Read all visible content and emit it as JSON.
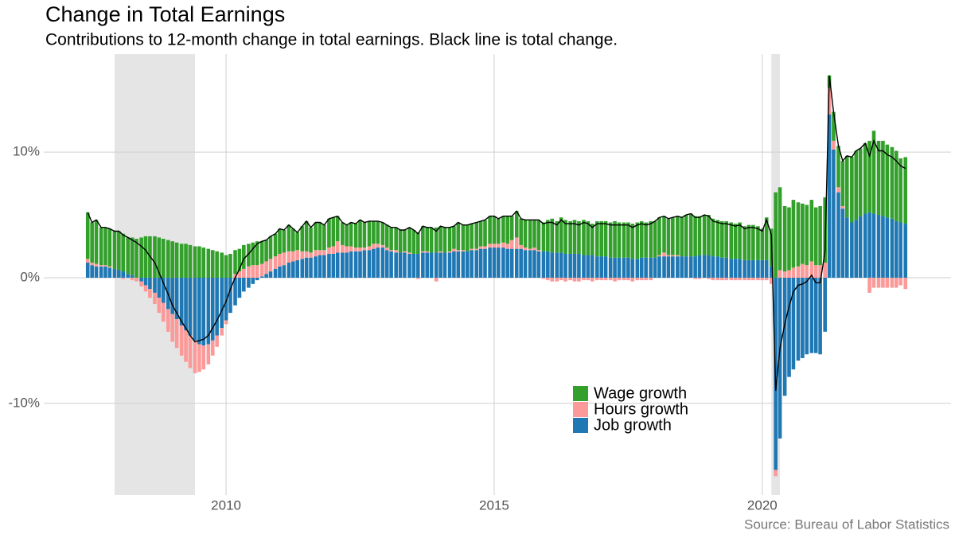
{
  "chart_data": {
    "type": "stacked-bar-line",
    "title": "Change in Total Earnings",
    "subtitle": "Contributions to 12-month change in total earnings. Black line is total change.",
    "source": "Source: Bureau of Labor Statistics",
    "xlim": [
      2006.6,
      2023.52
    ],
    "xticks": [
      2010,
      2015,
      2020
    ],
    "ylim": [
      -17.3,
      17.8
    ],
    "yticks": [
      {
        "value": -10,
        "label": "-10%"
      },
      {
        "value": 0,
        "label": "0%"
      },
      {
        "value": 10,
        "label": "10%"
      }
    ],
    "grid": true,
    "recession_color": "#e5e5e5",
    "recessions": [
      [
        2007.92,
        2009.42
      ],
      [
        2020.17,
        2020.33
      ]
    ],
    "x": [
      2007.42,
      2007.5,
      2007.58,
      2007.67,
      2007.75,
      2007.83,
      2007.92,
      2008,
      2008.08,
      2008.17,
      2008.25,
      2008.33,
      2008.42,
      2008.5,
      2008.58,
      2008.67,
      2008.75,
      2008.83,
      2008.92,
      2009,
      2009.08,
      2009.17,
      2009.25,
      2009.33,
      2009.42,
      2009.5,
      2009.58,
      2009.67,
      2009.75,
      2009.83,
      2009.92,
      2010,
      2010.08,
      2010.17,
      2010.25,
      2010.33,
      2010.42,
      2010.5,
      2010.58,
      2010.67,
      2010.75,
      2010.83,
      2010.92,
      2011,
      2011.08,
      2011.17,
      2011.25,
      2011.33,
      2011.42,
      2011.5,
      2011.58,
      2011.67,
      2011.75,
      2011.83,
      2011.92,
      2012,
      2012.08,
      2012.17,
      2012.25,
      2012.33,
      2012.42,
      2012.5,
      2012.58,
      2012.67,
      2012.75,
      2012.83,
      2012.92,
      2013,
      2013.08,
      2013.17,
      2013.25,
      2013.33,
      2013.42,
      2013.5,
      2013.58,
      2013.67,
      2013.75,
      2013.83,
      2013.92,
      2014,
      2014.08,
      2014.17,
      2014.25,
      2014.33,
      2014.42,
      2014.5,
      2014.58,
      2014.67,
      2014.75,
      2014.83,
      2014.92,
      2015,
      2015.08,
      2015.17,
      2015.25,
      2015.33,
      2015.42,
      2015.5,
      2015.58,
      2015.67,
      2015.75,
      2015.83,
      2015.92,
      2016,
      2016.08,
      2016.17,
      2016.25,
      2016.33,
      2016.42,
      2016.5,
      2016.58,
      2016.67,
      2016.75,
      2016.83,
      2016.92,
      2017,
      2017.08,
      2017.17,
      2017.25,
      2017.33,
      2017.42,
      2017.5,
      2017.58,
      2017.67,
      2017.75,
      2017.83,
      2017.92,
      2018,
      2018.08,
      2018.17,
      2018.25,
      2018.33,
      2018.42,
      2018.5,
      2018.58,
      2018.67,
      2018.75,
      2018.83,
      2018.92,
      2019,
      2019.08,
      2019.17,
      2019.25,
      2019.33,
      2019.42,
      2019.5,
      2019.58,
      2019.67,
      2019.75,
      2019.83,
      2019.92,
      2020,
      2020.08,
      2020.17,
      2020.25,
      2020.33,
      2020.42,
      2020.5,
      2020.58,
      2020.67,
      2020.75,
      2020.83,
      2020.92,
      2021,
      2021.08,
      2021.17,
      2021.25,
      2021.33,
      2021.42,
      2021.5,
      2021.58,
      2021.67,
      2021.75,
      2021.83,
      2021.92,
      2022,
      2022.08,
      2022.17,
      2022.25,
      2022.33,
      2022.42,
      2022.5,
      2022.58,
      2022.67
    ],
    "series": [
      {
        "name": "Wage growth",
        "color": "#33a02c",
        "values": [
          3.7,
          3.2,
          3.5,
          3.0,
          3.0,
          3.0,
          3.0,
          3.1,
          3.0,
          2.9,
          3.0,
          3.1,
          3.2,
          3.3,
          3.3,
          3.3,
          3.2,
          3.1,
          3.0,
          2.9,
          2.8,
          2.7,
          2.7,
          2.6,
          2.5,
          2.5,
          2.4,
          2.3,
          2.2,
          2.1,
          2.0,
          1.8,
          1.9,
          1.9,
          1.8,
          1.9,
          1.8,
          1.8,
          1.9,
          1.8,
          1.7,
          1.8,
          1.8,
          2.0,
          1.8,
          2.1,
          1.8,
          1.4,
          2.0,
          2.4,
          2.0,
          2.2,
          2.2,
          2.0,
          2.3,
          2.3,
          2.0,
          1.8,
          1.7,
          1.9,
          1.9,
          2.2,
          2.0,
          2.0,
          1.8,
          1.8,
          1.8,
          1.8,
          1.8,
          1.8,
          1.8,
          1.7,
          2.0,
          1.9,
          1.7,
          2.0,
          1.9,
          2.0,
          2.0,
          2.0,
          2.0,
          1.9,
          1.8,
          2.2,
          2.0,
          2.1,
          2.0,
          2.1,
          2.0,
          2.1,
          2.2,
          2.2,
          2.0,
          2.1,
          2.2,
          1.9,
          2.1,
          2.1,
          2.2,
          2.3,
          2.2,
          2.4,
          2.3,
          2.5,
          2.7,
          2.5,
          2.8,
          2.7,
          2.6,
          2.7,
          2.6,
          2.8,
          2.7,
          2.5,
          2.8,
          2.8,
          2.8,
          2.8,
          2.9,
          2.8,
          2.8,
          2.8,
          2.8,
          2.9,
          2.9,
          2.8,
          2.9,
          2.9,
          3.0,
          2.9,
          2.9,
          3.0,
          3.1,
          3.1,
          3.3,
          3.4,
          3.2,
          3.1,
          3.2,
          3.2,
          3.0,
          2.9,
          2.9,
          2.9,
          2.9,
          2.8,
          2.9,
          2.7,
          2.8,
          2.8,
          2.7,
          2.5,
          3.4,
          3.0,
          6.8,
          6.6,
          5.2,
          5.0,
          5.4,
          5.1,
          4.8,
          4.8,
          4.9,
          4.6,
          4.7,
          5.2,
          1.0,
          2.3,
          3.3,
          3.6,
          4.9,
          5.2,
          5.5,
          5.4,
          5.6,
          5.7,
          6.6,
          5.9,
          6.0,
          5.8,
          5.7,
          5.6,
          5.1,
          5.3
        ]
      },
      {
        "name": "Hours growth",
        "color": "#fb9a99",
        "values": [
          0.3,
          0.2,
          0.2,
          0.1,
          0.1,
          0.1,
          0.0,
          0.0,
          -0.1,
          0.0,
          -0.2,
          -0.3,
          -0.4,
          -0.5,
          -0.7,
          -0.9,
          -1.2,
          -1.5,
          -1.8,
          -2.2,
          -2.3,
          -2.4,
          -2.5,
          -2.6,
          -2.6,
          -2.2,
          -1.9,
          -1.6,
          -1.2,
          -0.9,
          -0.6,
          -0.3,
          0.0,
          0.3,
          0.5,
          0.7,
          0.9,
          1.0,
          1.0,
          1.0,
          1.0,
          1.0,
          1.0,
          1.0,
          1.0,
          0.9,
          0.8,
          0.8,
          0.6,
          0.5,
          0.4,
          0.5,
          0.4,
          0.4,
          0.5,
          0.6,
          0.9,
          0.6,
          0.5,
          0.4,
          0.3,
          0.3,
          0.2,
          0.3,
          0.4,
          0.3,
          0.2,
          0.2,
          0.1,
          0.2,
          0.0,
          0.1,
          0.1,
          0.0,
          -0.1,
          0.1,
          0.1,
          0.0,
          -0.3,
          0.1,
          0.0,
          0.1,
          0.2,
          0.1,
          0.1,
          0.0,
          0.1,
          0.1,
          0.2,
          0.2,
          0.3,
          0.3,
          0.3,
          0.4,
          0.4,
          0.7,
          0.9,
          0.3,
          0.2,
          0.1,
          0.2,
          0.1,
          -0.1,
          -0.2,
          -0.3,
          -0.3,
          -0.2,
          -0.3,
          -0.2,
          -0.3,
          -0.3,
          -0.2,
          -0.2,
          -0.3,
          -0.2,
          -0.2,
          -0.2,
          -0.2,
          -0.3,
          -0.2,
          -0.2,
          -0.2,
          -0.3,
          -0.2,
          -0.2,
          -0.2,
          -0.2,
          0.0,
          0.1,
          0.3,
          0.1,
          0.1,
          0.1,
          0.0,
          0.0,
          0.0,
          -0.1,
          -0.1,
          0.0,
          -0.1,
          -0.2,
          -0.2,
          -0.2,
          -0.2,
          -0.2,
          -0.2,
          -0.2,
          -0.2,
          -0.2,
          -0.2,
          -0.2,
          -0.2,
          -0.2,
          -0.5,
          -0.5,
          0.6,
          0.5,
          0.6,
          0.8,
          0.9,
          1.1,
          1.0,
          1.3,
          1.0,
          1.0,
          1.2,
          2.1,
          0.7,
          0.4,
          0.2,
          0.0,
          0.0,
          0.0,
          0.0,
          0.0,
          -1.2,
          -0.8,
          -0.8,
          -0.8,
          -0.8,
          -0.8,
          -0.8,
          -0.6,
          -0.9
        ]
      },
      {
        "name": "Job growth",
        "color": "#1f78b4",
        "values": [
          1.2,
          1.0,
          0.9,
          0.9,
          0.9,
          0.8,
          0.7,
          0.6,
          0.5,
          0.3,
          0.2,
          0.0,
          -0.3,
          -0.6,
          -0.9,
          -1.2,
          -1.6,
          -2.0,
          -2.5,
          -2.9,
          -3.3,
          -3.8,
          -4.2,
          -4.6,
          -5.0,
          -5.3,
          -5.4,
          -5.3,
          -5.0,
          -4.6,
          -4.0,
          -3.4,
          -2.8,
          -2.2,
          -1.6,
          -1.1,
          -0.8,
          -0.5,
          -0.2,
          0.1,
          0.3,
          0.5,
          0.7,
          0.9,
          1.0,
          1.2,
          1.3,
          1.4,
          1.5,
          1.6,
          1.6,
          1.7,
          1.8,
          1.8,
          1.9,
          1.9,
          2.0,
          2.0,
          2.0,
          2.1,
          2.1,
          2.1,
          2.2,
          2.2,
          2.3,
          2.4,
          2.4,
          2.2,
          2.1,
          2.0,
          2.0,
          2.0,
          1.9,
          1.9,
          1.9,
          2.0,
          2.0,
          2.0,
          2.0,
          2.0,
          2.0,
          2.0,
          2.1,
          2.1,
          2.1,
          2.1,
          2.2,
          2.2,
          2.3,
          2.3,
          2.4,
          2.4,
          2.4,
          2.4,
          2.3,
          2.3,
          2.3,
          2.3,
          2.2,
          2.2,
          2.2,
          2.1,
          2.1,
          2.1,
          2.0,
          2.0,
          2.0,
          1.9,
          1.9,
          1.9,
          1.9,
          1.8,
          1.8,
          1.8,
          1.7,
          1.7,
          1.7,
          1.6,
          1.6,
          1.6,
          1.6,
          1.6,
          1.5,
          1.5,
          1.6,
          1.6,
          1.6,
          1.6,
          1.7,
          1.7,
          1.7,
          1.7,
          1.7,
          1.7,
          1.7,
          1.7,
          1.7,
          1.8,
          1.8,
          1.8,
          1.7,
          1.7,
          1.6,
          1.6,
          1.5,
          1.5,
          1.5,
          1.4,
          1.4,
          1.4,
          1.4,
          1.4,
          1.4,
          0.9,
          -15.3,
          -12.8,
          -9.4,
          -7.9,
          -7.3,
          -6.6,
          -6.4,
          -6.1,
          -6.0,
          -6.0,
          -6.1,
          -4.3,
          13.0,
          10.2,
          6.8,
          5.5,
          4.8,
          4.4,
          4.6,
          4.9,
          5.1,
          5.2,
          5.1,
          5.0,
          4.9,
          4.8,
          4.7,
          4.5,
          4.4,
          4.3
        ]
      }
    ],
    "line": {
      "color": "#000000",
      "values": [
        5.2,
        4.4,
        4.6,
        4.0,
        4.0,
        3.9,
        3.7,
        3.7,
        3.4,
        3.2,
        3.0,
        2.8,
        2.5,
        2.2,
        1.7,
        1.2,
        0.4,
        -0.4,
        -1.3,
        -2.2,
        -2.8,
        -3.5,
        -4.0,
        -4.6,
        -5.1,
        -5.0,
        -4.9,
        -4.6,
        -4.0,
        -3.4,
        -2.6,
        -1.9,
        -0.9,
        0.0,
        0.7,
        1.5,
        1.9,
        2.3,
        2.7,
        2.9,
        3.0,
        3.3,
        3.5,
        3.9,
        3.8,
        4.2,
        3.9,
        3.6,
        4.1,
        4.5,
        4.0,
        4.4,
        4.4,
        4.2,
        4.7,
        4.8,
        4.9,
        4.4,
        4.2,
        4.4,
        4.3,
        4.6,
        4.4,
        4.5,
        4.5,
        4.5,
        4.4,
        4.2,
        4.0,
        4.0,
        3.8,
        3.8,
        4.0,
        3.8,
        3.5,
        4.1,
        4.0,
        4.0,
        3.7,
        4.1,
        4.0,
        4.0,
        4.1,
        4.4,
        4.2,
        4.2,
        4.3,
        4.4,
        4.5,
        4.6,
        4.9,
        4.9,
        4.7,
        4.9,
        4.9,
        4.9,
        5.3,
        4.7,
        4.6,
        4.6,
        4.6,
        4.6,
        4.3,
        4.4,
        4.4,
        4.2,
        4.6,
        4.3,
        4.3,
        4.3,
        4.2,
        4.4,
        4.3,
        4.0,
        4.3,
        4.3,
        4.3,
        4.2,
        4.2,
        4.2,
        4.2,
        4.2,
        4.0,
        4.2,
        4.3,
        4.2,
        4.3,
        4.5,
        4.8,
        4.9,
        4.7,
        4.8,
        4.9,
        4.8,
        5.0,
        5.1,
        4.8,
        4.8,
        5.0,
        4.9,
        4.5,
        4.4,
        4.3,
        4.3,
        4.2,
        4.1,
        4.2,
        3.9,
        4.0,
        4.0,
        3.9,
        3.7,
        4.6,
        3.4,
        -9.0,
        -5.6,
        -3.7,
        -2.3,
        -1.1,
        -0.6,
        -0.5,
        -0.3,
        0.2,
        -0.4,
        -0.4,
        2.1,
        16.1,
        13.2,
        10.5,
        9.3,
        9.7,
        9.6,
        10.1,
        10.3,
        10.7,
        9.7,
        10.9,
        10.1,
        10.1,
        9.8,
        9.6,
        9.3,
        8.9,
        8.7
      ]
    }
  }
}
